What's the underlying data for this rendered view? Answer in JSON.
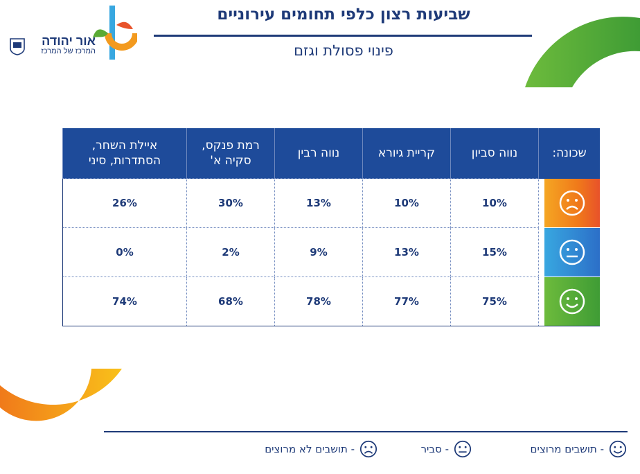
{
  "header": {
    "title": "שביעות רצון כלפי תחומים עירוניים",
    "subtitle": "פינוי פסולת וגזם"
  },
  "logo": {
    "name": "אור יהודה",
    "tagline": "המרכז של המרכז"
  },
  "table": {
    "row_header": "שכונה:",
    "columns": [
      "נווה סביון",
      "קריית גיורא",
      "נווה רבין",
      "רמת פנקס, סקיה א'",
      "איילת השחר, הסתדרות, סיני"
    ],
    "rows": [
      {
        "icon": "sad-face-icon",
        "values": [
          "10%",
          "10%",
          "13%",
          "30%",
          "26%"
        ]
      },
      {
        "icon": "neutral-face-icon",
        "values": [
          "15%",
          "13%",
          "9%",
          "2%",
          "0%"
        ]
      },
      {
        "icon": "smile-face-icon",
        "values": [
          "75%",
          "77%",
          "78%",
          "68%",
          "74%"
        ]
      }
    ]
  },
  "legend": {
    "satisfied": "- תושבים מרוצים",
    "reasonable": "- סביר",
    "unsatisfied": "- תושבים לא מרוצים"
  },
  "colors": {
    "brand_blue": "#1e3a78",
    "header_blue": "#1e4b9a",
    "green": "#5aaa35",
    "orange": "#f39a1e",
    "light_blue": "#38a7e0"
  }
}
